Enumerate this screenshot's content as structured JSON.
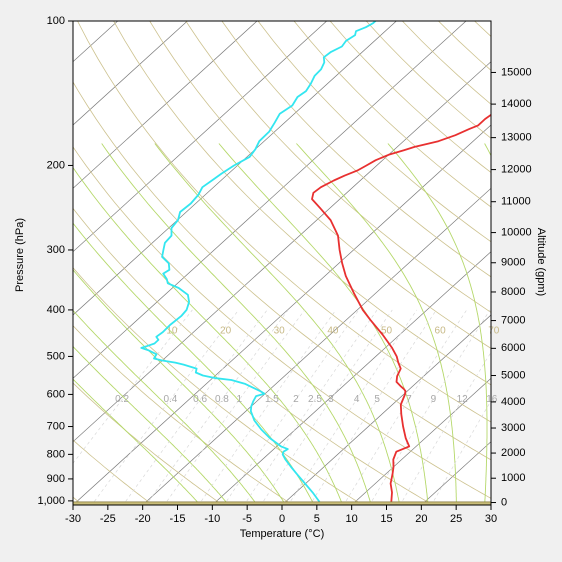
{
  "chart_data": {
    "type": "line",
    "title": "",
    "xlabel": "Temperature (°C)",
    "ylabel": "Pressure (hPa)",
    "y2label": "Altitude (gpm)",
    "xlim": [
      -30,
      30
    ],
    "ylim": [
      1020,
      100
    ],
    "y_scale": "log",
    "skew": true,
    "x_ticks": [
      "-30",
      "-25",
      "-20",
      "-15",
      "-10",
      "-5",
      "0",
      "5",
      "10",
      "15",
      "20",
      "25",
      "30"
    ],
    "x_tick_values": [
      -30,
      -25,
      -20,
      -15,
      -10,
      -5,
      0,
      5,
      10,
      15,
      20,
      25,
      30
    ],
    "y_ticks": [
      {
        "p": 100,
        "label": "100"
      },
      {
        "p": 200,
        "label": "200"
      },
      {
        "p": 300,
        "label": "300"
      },
      {
        "p": 400,
        "label": "400"
      },
      {
        "p": 500,
        "label": "500"
      },
      {
        "p": 600,
        "label": "600"
      },
      {
        "p": 700,
        "label": "700"
      },
      {
        "p": 800,
        "label": "800"
      },
      {
        "p": 900,
        "label": "900"
      },
      {
        "p": 1000,
        "label": "1,000"
      }
    ],
    "altitude_ticks": [
      {
        "alt": 0,
        "p": 1008,
        "label": "0"
      },
      {
        "alt": 1000,
        "p": 897,
        "label": "1000"
      },
      {
        "alt": 2000,
        "p": 795,
        "label": "2000"
      },
      {
        "alt": 3000,
        "p": 705,
        "label": "3000"
      },
      {
        "alt": 4000,
        "p": 622,
        "label": "4000"
      },
      {
        "alt": 5000,
        "p": 548,
        "label": "5000"
      },
      {
        "alt": 6000,
        "p": 481,
        "label": "6000"
      },
      {
        "alt": 7000,
        "p": 421,
        "label": "7000"
      },
      {
        "alt": 8000,
        "p": 367,
        "label": "8000"
      },
      {
        "alt": 9000,
        "p": 319,
        "label": "9000"
      },
      {
        "alt": 10000,
        "p": 276,
        "label": "10000"
      },
      {
        "alt": 11000,
        "p": 238,
        "label": "11000"
      },
      {
        "alt": 12000,
        "p": 204,
        "label": "12000"
      },
      {
        "alt": 13000,
        "p": 175,
        "label": "13000"
      },
      {
        "alt": 14000,
        "p": 149,
        "label": "14000"
      },
      {
        "alt": 15000,
        "p": 128,
        "label": "15000"
      }
    ],
    "surface_pressure": 1005,
    "mixing_ratio_labels": [
      "0.2",
      "0.4",
      "0.6",
      "0.8",
      "1",
      "1.5",
      "2",
      "2.5",
      "3",
      "4",
      "5",
      "7",
      "9",
      "12",
      "16"
    ],
    "mixing_ratio_values": [
      0.2,
      0.4,
      0.6,
      0.8,
      1,
      1.5,
      2,
      2.5,
      3,
      4,
      5,
      7,
      9,
      12,
      16
    ],
    "moist_adiabat_labels": [
      "10",
      "20",
      "30",
      "40",
      "50",
      "60",
      "70"
    ],
    "series": [
      {
        "color": "#e83030",
        "points": [
          {
            "p": 1005,
            "t": 15.2
          },
          {
            "p": 960,
            "t": 13.8
          },
          {
            "p": 920,
            "t": 12.2
          },
          {
            "p": 880,
            "t": 11.0
          },
          {
            "p": 850,
            "t": 10.0
          },
          {
            "p": 820,
            "t": 8.8
          },
          {
            "p": 790,
            "t": 8.0
          },
          {
            "p": 770,
            "t": 9.0
          },
          {
            "p": 740,
            "t": 7.2
          },
          {
            "p": 700,
            "t": 5.0
          },
          {
            "p": 660,
            "t": 2.8
          },
          {
            "p": 630,
            "t": 1.2
          },
          {
            "p": 600,
            "t": 0.2
          },
          {
            "p": 590,
            "t": -0.3
          },
          {
            "p": 585,
            "t": -0.8
          },
          {
            "p": 578,
            "t": -1.6
          },
          {
            "p": 565,
            "t": -3.0
          },
          {
            "p": 550,
            "t": -3.8
          },
          {
            "p": 530,
            "t": -4.5
          },
          {
            "p": 515,
            "t": -5.8
          },
          {
            "p": 500,
            "t": -7.0
          },
          {
            "p": 480,
            "t": -9.0
          },
          {
            "p": 450,
            "t": -12.5
          },
          {
            "p": 420,
            "t": -16.5
          },
          {
            "p": 400,
            "t": -19.2
          },
          {
            "p": 370,
            "t": -23.0
          },
          {
            "p": 340,
            "t": -27.0
          },
          {
            "p": 320,
            "t": -29.5
          },
          {
            "p": 300,
            "t": -32.0
          },
          {
            "p": 280,
            "t": -34.5
          },
          {
            "p": 260,
            "t": -38.0
          },
          {
            "p": 245,
            "t": -41.5
          },
          {
            "p": 235,
            "t": -44.0
          },
          {
            "p": 228,
            "t": -44.8
          },
          {
            "p": 222,
            "t": -44.6
          },
          {
            "p": 215,
            "t": -43.8
          },
          {
            "p": 210,
            "t": -43.0
          },
          {
            "p": 205,
            "t": -42.0
          },
          {
            "p": 200,
            "t": -41.5
          },
          {
            "p": 195,
            "t": -41.0
          },
          {
            "p": 190,
            "t": -40.0
          },
          {
            "p": 186,
            "t": -38.5
          },
          {
            "p": 183,
            "t": -37.5
          },
          {
            "p": 180,
            "t": -36.0
          },
          {
            "p": 178,
            "t": -35.0
          },
          {
            "p": 173,
            "t": -33.5
          },
          {
            "p": 168,
            "t": -32.5
          },
          {
            "p": 165,
            "t": -31.8
          },
          {
            "p": 160,
            "t": -31.8
          },
          {
            "p": 155,
            "t": -31.5
          },
          {
            "p": 150,
            "t": -31.8
          },
          {
            "p": 145,
            "t": -32.2
          },
          {
            "p": 140,
            "t": -32.8
          },
          {
            "p": 136,
            "t": -32.3
          },
          {
            "p": 132,
            "t": -31.2
          },
          {
            "p": 129,
            "t": -30.2
          },
          {
            "p": 125,
            "t": -29.3
          },
          {
            "p": 121,
            "t": -28.5
          },
          {
            "p": 117,
            "t": -28.8
          },
          {
            "p": 113,
            "t": -28.6
          },
          {
            "p": 110,
            "t": -27.8
          },
          {
            "p": 106,
            "t": -27.6
          },
          {
            "p": 103,
            "t": -27.1
          },
          {
            "p": 101,
            "t": -26.3
          },
          {
            "p": 100,
            "t": -26.3
          }
        ]
      },
      {
        "color": "#33e6f0",
        "points": [
          {
            "p": 1005,
            "t": 4.9
          },
          {
            "p": 960,
            "t": 2.4
          },
          {
            "p": 920,
            "t": -0.1
          },
          {
            "p": 880,
            "t": -2.7
          },
          {
            "p": 850,
            "t": -4.7
          },
          {
            "p": 820,
            "t": -6.7
          },
          {
            "p": 800,
            "t": -7.9
          },
          {
            "p": 790,
            "t": -8.2
          },
          {
            "p": 780,
            "t": -8.0
          },
          {
            "p": 770,
            "t": -9.4
          },
          {
            "p": 740,
            "t": -12.3
          },
          {
            "p": 710,
            "t": -14.9
          },
          {
            "p": 680,
            "t": -17.3
          },
          {
            "p": 650,
            "t": -19.3
          },
          {
            "p": 635,
            "t": -20.0
          },
          {
            "p": 620,
            "t": -20.5
          },
          {
            "p": 605,
            "t": -20.9
          },
          {
            "p": 598,
            "t": -20.1
          },
          {
            "p": 590,
            "t": -21.2
          },
          {
            "p": 570,
            "t": -24.5
          },
          {
            "p": 560,
            "t": -27.0
          },
          {
            "p": 555,
            "t": -29.5
          },
          {
            "p": 548,
            "t": -31.8
          },
          {
            "p": 540,
            "t": -33.3
          },
          {
            "p": 530,
            "t": -33.8
          },
          {
            "p": 520,
            "t": -36.3
          },
          {
            "p": 515,
            "t": -37.8
          },
          {
            "p": 510,
            "t": -40.0
          },
          {
            "p": 505,
            "t": -41.5
          },
          {
            "p": 495,
            "t": -41.8
          },
          {
            "p": 485,
            "t": -43.7
          },
          {
            "p": 480,
            "t": -45.0
          },
          {
            "p": 476,
            "t": -44.5
          },
          {
            "p": 470,
            "t": -43.8
          },
          {
            "p": 462,
            "t": -43.8
          },
          {
            "p": 455,
            "t": -44.6
          },
          {
            "p": 445,
            "t": -44.4
          },
          {
            "p": 430,
            "t": -44.5
          },
          {
            "p": 412,
            "t": -44.3
          },
          {
            "p": 400,
            "t": -44.5
          },
          {
            "p": 385,
            "t": -45.4
          },
          {
            "p": 372,
            "t": -46.7
          },
          {
            "p": 360,
            "t": -49.1
          },
          {
            "p": 352,
            "t": -51.4
          },
          {
            "p": 345,
            "t": -52.2
          },
          {
            "p": 336,
            "t": -53.6
          },
          {
            "p": 330,
            "t": -53.3
          },
          {
            "p": 320,
            "t": -54.4
          },
          {
            "p": 310,
            "t": -56.4
          },
          {
            "p": 300,
            "t": -57.3
          },
          {
            "p": 290,
            "t": -58.2
          },
          {
            "p": 280,
            "t": -58.4
          },
          {
            "p": 270,
            "t": -59.6
          },
          {
            "p": 260,
            "t": -59.9
          },
          {
            "p": 250,
            "t": -60.9
          },
          {
            "p": 240,
            "t": -60.7
          },
          {
            "p": 230,
            "t": -61.0
          },
          {
            "p": 222,
            "t": -61.6
          },
          {
            "p": 215,
            "t": -61.3
          },
          {
            "p": 208,
            "t": -61.0
          },
          {
            "p": 200,
            "t": -60.5
          },
          {
            "p": 192,
            "t": -59.6
          },
          {
            "p": 185,
            "t": -60.0
          },
          {
            "p": 178,
            "t": -60.7
          },
          {
            "p": 170,
            "t": -60.8
          },
          {
            "p": 163,
            "t": -61.4
          },
          {
            "p": 156,
            "t": -62.1
          },
          {
            "p": 150,
            "t": -61.6
          },
          {
            "p": 144,
            "t": -62.2
          },
          {
            "p": 140,
            "t": -61.9
          },
          {
            "p": 135,
            "t": -62.4
          },
          {
            "p": 130,
            "t": -63.1
          },
          {
            "p": 126,
            "t": -63.2
          },
          {
            "p": 122,
            "t": -63.8
          },
          {
            "p": 119,
            "t": -64.7
          },
          {
            "p": 116,
            "t": -64.5
          },
          {
            "p": 113,
            "t": -63.8
          },
          {
            "p": 110,
            "t": -64.1
          },
          {
            "p": 107,
            "t": -63.7
          },
          {
            "p": 105,
            "t": -64.2
          },
          {
            "p": 103,
            "t": -63.4
          },
          {
            "p": 101,
            "t": -63.0
          },
          {
            "p": 100,
            "t": -63.0
          }
        ]
      }
    ]
  }
}
